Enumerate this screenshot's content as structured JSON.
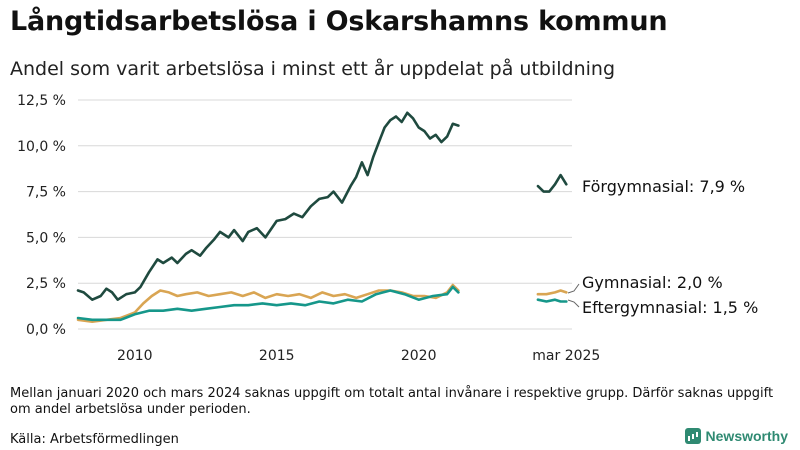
{
  "title": "Långtidsarbetslösa i Oskarshamns kommun",
  "subtitle": "Andel som varit arbetslösa i minst ett år uppdelat på utbildning",
  "note": "Mellan januari 2020 och mars 2024 saknas uppgift om totalt antal invånare i respektive grupp. Därför saknas uppgift om andel arbetslösa under perioden.",
  "source": "Källa: Arbetsförmedlingen",
  "brand": "Newsworthy",
  "colors": {
    "forgymnasial": "#1f4a3f",
    "gymnasial": "#d9a553",
    "eftergymnasial": "#16978a",
    "grid": "#d8d8d8"
  },
  "chart_data": {
    "type": "line",
    "x_ticks": [
      {
        "x": 2010,
        "label": "2010"
      },
      {
        "x": 2015,
        "label": "2015"
      },
      {
        "x": 2020,
        "label": "2020"
      },
      {
        "x": 2025.2,
        "label": "mar 2025"
      }
    ],
    "y_ticks": [
      {
        "y": 0,
        "label": "0,0 %"
      },
      {
        "y": 2.5,
        "label": "2,5 %"
      },
      {
        "y": 5,
        "label": "5,0 %"
      },
      {
        "y": 7.5,
        "label": "7,5 %"
      },
      {
        "y": 10,
        "label": "10,0 %"
      },
      {
        "y": 12.5,
        "label": "12,5 %"
      }
    ],
    "xlim": [
      2008.0,
      2025.4
    ],
    "ylim": [
      0,
      12.5
    ],
    "grid": true,
    "series": [
      {
        "name": "Förgymnasial",
        "end_label": "Förgymnasial: 7,9 %",
        "color": "#1f4a3f",
        "segments": [
          [
            [
              2008.0,
              2.1
            ],
            [
              2008.2,
              2.0
            ],
            [
              2008.5,
              1.6
            ],
            [
              2008.8,
              1.8
            ],
            [
              2009.0,
              2.2
            ],
            [
              2009.2,
              2.0
            ],
            [
              2009.4,
              1.6
            ],
            [
              2009.7,
              1.9
            ],
            [
              2010.0,
              2.0
            ],
            [
              2010.2,
              2.3
            ],
            [
              2010.5,
              3.1
            ],
            [
              2010.8,
              3.8
            ],
            [
              2011.0,
              3.6
            ],
            [
              2011.3,
              3.9
            ],
            [
              2011.5,
              3.6
            ],
            [
              2011.8,
              4.1
            ],
            [
              2012.0,
              4.3
            ],
            [
              2012.3,
              4.0
            ],
            [
              2012.5,
              4.4
            ],
            [
              2012.8,
              4.9
            ],
            [
              2013.0,
              5.3
            ],
            [
              2013.3,
              5.0
            ],
            [
              2013.5,
              5.4
            ],
            [
              2013.8,
              4.8
            ],
            [
              2014.0,
              5.3
            ],
            [
              2014.3,
              5.5
            ],
            [
              2014.6,
              5.0
            ],
            [
              2015.0,
              5.9
            ],
            [
              2015.3,
              6.0
            ],
            [
              2015.6,
              6.3
            ],
            [
              2015.9,
              6.1
            ],
            [
              2016.2,
              6.7
            ],
            [
              2016.5,
              7.1
            ],
            [
              2016.8,
              7.2
            ],
            [
              2017.0,
              7.5
            ],
            [
              2017.3,
              6.9
            ],
            [
              2017.6,
              7.8
            ],
            [
              2017.8,
              8.3
            ],
            [
              2018.0,
              9.1
            ],
            [
              2018.2,
              8.4
            ],
            [
              2018.4,
              9.4
            ],
            [
              2018.6,
              10.2
            ],
            [
              2018.8,
              11.0
            ],
            [
              2019.0,
              11.4
            ],
            [
              2019.2,
              11.6
            ],
            [
              2019.4,
              11.3
            ],
            [
              2019.6,
              11.8
            ],
            [
              2019.8,
              11.5
            ],
            [
              2020.0,
              11.0
            ],
            [
              2020.2,
              10.8
            ],
            [
              2020.4,
              10.4
            ],
            [
              2020.6,
              10.6
            ],
            [
              2020.8,
              10.2
            ],
            [
              2021.0,
              10.5
            ],
            [
              2021.2,
              11.2
            ],
            [
              2021.4,
              11.1
            ]
          ],
          [
            [
              2024.2,
              7.8
            ],
            [
              2024.4,
              7.5
            ],
            [
              2024.6,
              7.5
            ],
            [
              2024.8,
              7.9
            ],
            [
              2025.0,
              8.4
            ],
            [
              2025.2,
              7.9
            ]
          ]
        ]
      },
      {
        "name": "Gymnasial",
        "end_label": "Gymnasial: 2,0 %",
        "color": "#d9a553",
        "segments": [
          [
            [
              2008.0,
              0.5
            ],
            [
              2008.5,
              0.4
            ],
            [
              2009.0,
              0.5
            ],
            [
              2009.5,
              0.6
            ],
            [
              2010.0,
              0.9
            ],
            [
              2010.3,
              1.4
            ],
            [
              2010.6,
              1.8
            ],
            [
              2010.9,
              2.1
            ],
            [
              2011.2,
              2.0
            ],
            [
              2011.5,
              1.8
            ],
            [
              2011.8,
              1.9
            ],
            [
              2012.2,
              2.0
            ],
            [
              2012.6,
              1.8
            ],
            [
              2013.0,
              1.9
            ],
            [
              2013.4,
              2.0
            ],
            [
              2013.8,
              1.8
            ],
            [
              2014.2,
              2.0
            ],
            [
              2014.6,
              1.7
            ],
            [
              2015.0,
              1.9
            ],
            [
              2015.4,
              1.8
            ],
            [
              2015.8,
              1.9
            ],
            [
              2016.2,
              1.7
            ],
            [
              2016.6,
              2.0
            ],
            [
              2017.0,
              1.8
            ],
            [
              2017.4,
              1.9
            ],
            [
              2017.8,
              1.7
            ],
            [
              2018.2,
              1.9
            ],
            [
              2018.6,
              2.1
            ],
            [
              2019.0,
              2.1
            ],
            [
              2019.4,
              2.0
            ],
            [
              2019.8,
              1.8
            ],
            [
              2020.2,
              1.8
            ],
            [
              2020.6,
              1.7
            ],
            [
              2021.0,
              2.0
            ],
            [
              2021.2,
              2.4
            ],
            [
              2021.4,
              2.1
            ]
          ],
          [
            [
              2024.2,
              1.9
            ],
            [
              2024.5,
              1.9
            ],
            [
              2024.8,
              2.0
            ],
            [
              2025.0,
              2.1
            ],
            [
              2025.2,
              2.0
            ]
          ]
        ]
      },
      {
        "name": "Eftergymnasial",
        "end_label": "Eftergymnasial: 1,5 %",
        "color": "#16978a",
        "segments": [
          [
            [
              2008.0,
              0.6
            ],
            [
              2008.5,
              0.5
            ],
            [
              2009.0,
              0.5
            ],
            [
              2009.5,
              0.5
            ],
            [
              2010.0,
              0.8
            ],
            [
              2010.5,
              1.0
            ],
            [
              2011.0,
              1.0
            ],
            [
              2011.5,
              1.1
            ],
            [
              2012.0,
              1.0
            ],
            [
              2012.5,
              1.1
            ],
            [
              2013.0,
              1.2
            ],
            [
              2013.5,
              1.3
            ],
            [
              2014.0,
              1.3
            ],
            [
              2014.5,
              1.4
            ],
            [
              2015.0,
              1.3
            ],
            [
              2015.5,
              1.4
            ],
            [
              2016.0,
              1.3
            ],
            [
              2016.5,
              1.5
            ],
            [
              2017.0,
              1.4
            ],
            [
              2017.5,
              1.6
            ],
            [
              2018.0,
              1.5
            ],
            [
              2018.5,
              1.9
            ],
            [
              2019.0,
              2.1
            ],
            [
              2019.5,
              1.9
            ],
            [
              2020.0,
              1.6
            ],
            [
              2020.5,
              1.8
            ],
            [
              2021.0,
              1.9
            ],
            [
              2021.2,
              2.3
            ],
            [
              2021.4,
              2.0
            ]
          ],
          [
            [
              2024.2,
              1.6
            ],
            [
              2024.5,
              1.5
            ],
            [
              2024.8,
              1.6
            ],
            [
              2025.0,
              1.5
            ],
            [
              2025.2,
              1.5
            ]
          ]
        ]
      }
    ]
  }
}
